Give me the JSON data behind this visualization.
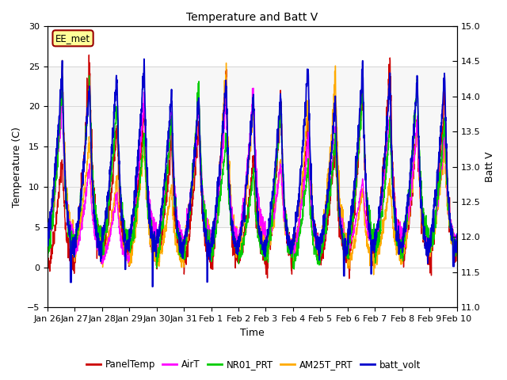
{
  "title": "Temperature and Batt V",
  "xlabel": "Time",
  "ylabel_left": "Temperature (C)",
  "ylabel_right": "Batt V",
  "ylim_left": [
    -5,
    30
  ],
  "ylim_right": [
    11.0,
    15.0
  ],
  "yticks_left": [
    -5,
    0,
    5,
    10,
    15,
    20,
    25,
    30
  ],
  "yticks_right": [
    11.0,
    11.5,
    12.0,
    12.5,
    13.0,
    13.5,
    14.0,
    14.5,
    15.0
  ],
  "shaded_region": [
    5,
    25
  ],
  "watermark": "EE_met",
  "legend_entries": [
    "PanelTemp",
    "AirT",
    "NR01_PRT",
    "AM25T_PRT",
    "batt_volt"
  ],
  "legend_colors": [
    "#cc0000",
    "#ff00ff",
    "#00cc00",
    "#ffaa00",
    "#0000cc"
  ],
  "line_width": 1.0,
  "background_color": "#ffffff",
  "grid_color": "#aaaaaa",
  "num_days": 15,
  "seed": 42,
  "tick_labels": [
    "Jan 26",
    "Jan 27",
    "Jan 28",
    "Jan 29",
    "Jan 30",
    "Jan 31",
    "Feb 1",
    "Feb 2",
    "Feb 3",
    "Feb 4",
    "Feb 5",
    "Feb 6",
    "Feb 7",
    "Feb 8",
    "Feb 9",
    "Feb 10"
  ],
  "shaded_alpha": 0.18
}
